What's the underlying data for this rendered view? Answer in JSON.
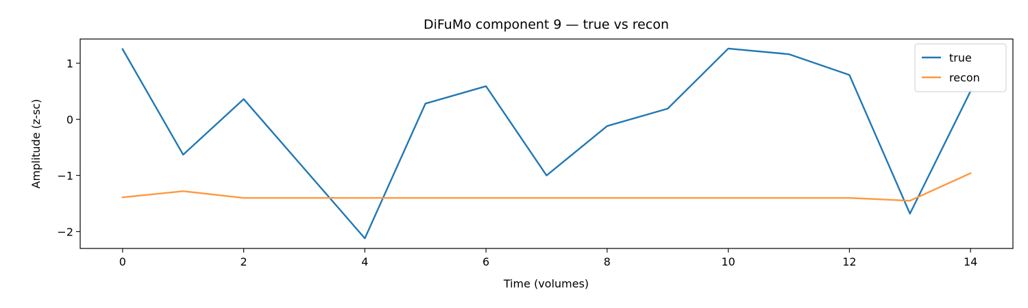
{
  "chart_data": {
    "type": "line",
    "title": "DiFuMo component 9 — true vs recon",
    "xlabel": "Time (volumes)",
    "ylabel": "Amplitude (z-sc)",
    "xlim": [
      -0.7,
      14.7
    ],
    "ylim": [
      -2.3,
      1.43
    ],
    "xticks": [
      0,
      2,
      4,
      6,
      8,
      10,
      12,
      14
    ],
    "xtick_labels": [
      "0",
      "2",
      "4",
      "6",
      "8",
      "10",
      "12",
      "14"
    ],
    "yticks": [
      -2,
      -1,
      0,
      1
    ],
    "ytick_labels": [
      "−2",
      "−1",
      "0",
      "1"
    ],
    "grid": false,
    "legend_position": "top-right",
    "x": [
      0,
      1,
      2,
      3,
      4,
      5,
      6,
      7,
      8,
      9,
      10,
      11,
      12,
      13,
      14
    ],
    "series": [
      {
        "name": "true",
        "color": "#1f77b4",
        "values": [
          1.25,
          -0.63,
          0.36,
          -0.88,
          -2.12,
          0.28,
          0.59,
          -1.0,
          -0.12,
          0.19,
          1.26,
          1.16,
          0.79,
          -1.68,
          0.5
        ]
      },
      {
        "name": "recon",
        "color": "#ff983e",
        "values": [
          -1.39,
          -1.28,
          -1.4,
          -1.4,
          -1.4,
          -1.4,
          -1.4,
          -1.4,
          -1.4,
          -1.4,
          -1.4,
          -1.4,
          -1.4,
          -1.45,
          -0.96
        ]
      }
    ]
  }
}
